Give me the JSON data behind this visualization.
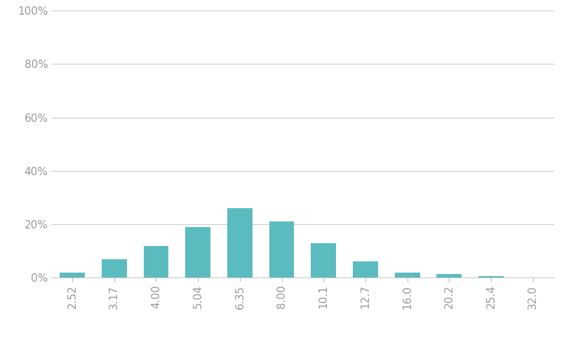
{
  "categories": [
    "2.52",
    "3.17",
    "4.00",
    "5.04",
    "6.35",
    "8.00",
    "10.1",
    "12.7",
    "16.0",
    "20.2",
    "25.4",
    "32.0"
  ],
  "values": [
    0.02,
    0.07,
    0.12,
    0.19,
    0.26,
    0.21,
    0.13,
    0.06,
    0.02,
    0.015,
    0.005,
    0.001
  ],
  "bar_color": "#5bbcbf",
  "background_color": "#ffffff",
  "grid_color": "#cccccc",
  "tick_color": "#bbbbbb",
  "label_color": "#999999",
  "ylim": [
    0,
    1.0
  ],
  "yticks": [
    0.0,
    0.2,
    0.4,
    0.6,
    0.8,
    1.0
  ],
  "ytick_labels": [
    "0%",
    "20%",
    "40%",
    "60%",
    "80%",
    "100%"
  ],
  "figsize": [
    8.14,
    5.08
  ],
  "dpi": 100
}
